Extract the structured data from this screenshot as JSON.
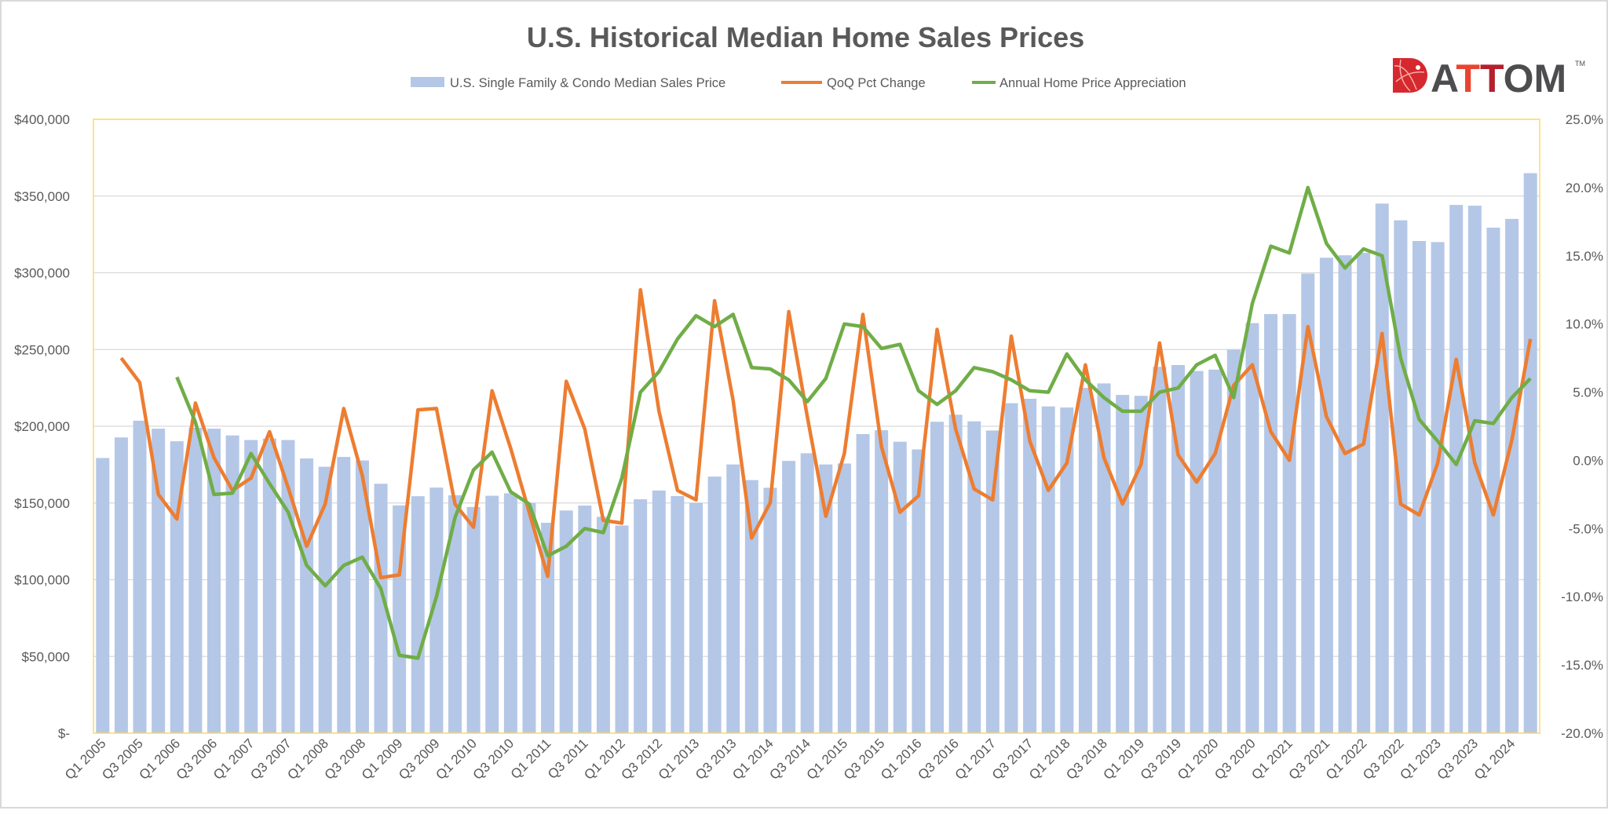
{
  "chart_data": {
    "type": "bar+line",
    "title": "U.S. Historical Median Home Sales Prices",
    "logo_text": "ATTOM",
    "logo_tm": "TM",
    "legend_position": "top",
    "grid": true,
    "y_left": {
      "min": 0,
      "max": 400000,
      "step": 50000,
      "tick_labels": [
        "$-",
        "$50,000",
        "$100,000",
        "$150,000",
        "$200,000",
        "$250,000",
        "$300,000",
        "$350,000",
        "$400,000"
      ]
    },
    "y_right": {
      "min": -20,
      "max": 25,
      "step": 5,
      "tick_labels": [
        "-20.0%",
        "-15.0%",
        "-10.0%",
        "-5.0%",
        "0.0%",
        "5.0%",
        "10.0%",
        "15.0%",
        "20.0%",
        "25.0%"
      ]
    },
    "categories": [
      "Q1 2005",
      "Q2 2005",
      "Q3 2005",
      "Q4 2005",
      "Q1 2006",
      "Q2 2006",
      "Q3 2006",
      "Q4 2006",
      "Q1 2007",
      "Q2 2007",
      "Q3 2007",
      "Q4 2007",
      "Q1 2008",
      "Q2 2008",
      "Q3 2008",
      "Q4 2008",
      "Q1 2009",
      "Q2 2009",
      "Q3 2009",
      "Q4 2009",
      "Q1 2010",
      "Q2 2010",
      "Q3 2010",
      "Q4 2010",
      "Q1 2011",
      "Q2 2011",
      "Q3 2011",
      "Q4 2011",
      "Q1 2012",
      "Q2 2012",
      "Q3 2012",
      "Q4 2012",
      "Q1 2013",
      "Q2 2013",
      "Q3 2013",
      "Q4 2013",
      "Q1 2014",
      "Q2 2014",
      "Q3 2014",
      "Q4 2014",
      "Q1 2015",
      "Q2 2015",
      "Q3 2015",
      "Q4 2015",
      "Q1 2016",
      "Q2 2016",
      "Q3 2016",
      "Q4 2016",
      "Q1 2017",
      "Q2 2017",
      "Q3 2017",
      "Q4 2017",
      "Q1 2018",
      "Q2 2018",
      "Q3 2018",
      "Q4 2018",
      "Q1 2019",
      "Q2 2019",
      "Q3 2019",
      "Q4 2019",
      "Q1 2020",
      "Q2 2020",
      "Q3 2020",
      "Q4 2020",
      "Q1 2021",
      "Q2 2021",
      "Q3 2021",
      "Q4 2021",
      "Q1 2022",
      "Q2 2022",
      "Q3 2022",
      "Q4 2022",
      "Q1 2023",
      "Q2 2023",
      "Q3 2023",
      "Q4 2023",
      "Q1 2024",
      "Q2 2024"
    ],
    "tick_label_every": 2,
    "series": [
      {
        "name": "U.S. Single Family & Condo Median Sales Price",
        "type": "bar",
        "axis": "left",
        "color": "#b4c7e7",
        "values": [
          179300,
          192700,
          203600,
          198400,
          190200,
          199000,
          198400,
          194000,
          191000,
          192000,
          191000,
          179000,
          173600,
          180000,
          177700,
          162500,
          148400,
          154400,
          160000,
          155000,
          147400,
          154700,
          156300,
          150000,
          137100,
          145100,
          148300,
          141000,
          135300,
          152400,
          158100,
          154500,
          150100,
          167200,
          175100,
          164900,
          159900,
          177400,
          182400,
          175100,
          175700,
          194900,
          197400,
          189900,
          184900,
          202900,
          207500,
          203200,
          197200,
          215000,
          217900,
          212900,
          212200,
          225000,
          227900,
          220400,
          219800,
          238700,
          239900,
          236000,
          236900,
          249900,
          267200,
          273100,
          273100,
          299500,
          309800,
          311400,
          313000,
          345100,
          334200,
          320700,
          320000,
          344200,
          343700,
          329400,
          335100,
          364900
        ]
      },
      {
        "name": "QoQ Pct Change",
        "type": "line",
        "axis": "right",
        "color": "#ed7d31",
        "values": [
          null,
          7.5,
          5.7,
          -2.5,
          -4.3,
          4.2,
          0.2,
          -2.2,
          -1.3,
          2.1,
          -2.0,
          -6.3,
          -3.2,
          3.8,
          -1.1,
          -8.6,
          -8.4,
          3.7,
          3.8,
          -3.2,
          -4.9,
          5.1,
          0.9,
          -3.8,
          -8.5,
          5.8,
          2.3,
          -4.4,
          -4.6,
          12.5,
          3.6,
          -2.2,
          -2.9,
          11.7,
          4.4,
          -5.7,
          -3.1,
          10.9,
          3.2,
          -4.1,
          0.5,
          10.7,
          1.0,
          -3.8,
          -2.6,
          9.6,
          2.3,
          -2.1,
          -2.9,
          9.1,
          1.4,
          -2.2,
          -0.2,
          7.0,
          0.2,
          -3.2,
          -0.3,
          8.6,
          0.4,
          -1.6,
          0.5,
          5.5,
          7.0,
          2.1,
          0.0,
          9.8,
          3.2,
          0.5,
          1.2,
          9.3,
          -3.2,
          -4.0,
          -0.2,
          7.4,
          -0.2,
          -4.0,
          1.5,
          8.9
        ]
      },
      {
        "name": "Annual Home Price Appreciation",
        "type": "line",
        "axis": "right",
        "color": "#70ad47",
        "values": [
          null,
          null,
          null,
          null,
          6.1,
          2.8,
          -2.5,
          -2.4,
          0.5,
          -1.7,
          -3.8,
          -7.7,
          -9.2,
          -7.7,
          -7.1,
          -9.4,
          -14.3,
          -14.5,
          -10.0,
          -4.2,
          -0.7,
          0.6,
          -2.3,
          -3.2,
          -7.0,
          -6.3,
          -5.0,
          -5.3,
          -1.3,
          5.0,
          6.5,
          8.9,
          10.6,
          9.8,
          10.7,
          6.8,
          6.7,
          5.9,
          4.3,
          6.0,
          10.0,
          9.8,
          8.2,
          8.5,
          5.1,
          4.1,
          5.1,
          6.8,
          6.5,
          5.9,
          5.1,
          5.0,
          7.8,
          5.9,
          4.6,
          3.6,
          3.6,
          5.0,
          5.3,
          7.0,
          7.7,
          4.6,
          11.5,
          15.7,
          15.2,
          20.0,
          15.9,
          14.1,
          15.5,
          15.0,
          7.5,
          3.0,
          1.4,
          -0.3,
          2.9,
          2.7,
          4.6,
          6.0
        ]
      }
    ],
    "colors": {
      "plot_border": "#ffd966",
      "grid": "#d9d9d9",
      "text": "#595959",
      "logo_red": "#d6282f",
      "logo_dark": "#4d4d4f"
    }
  }
}
